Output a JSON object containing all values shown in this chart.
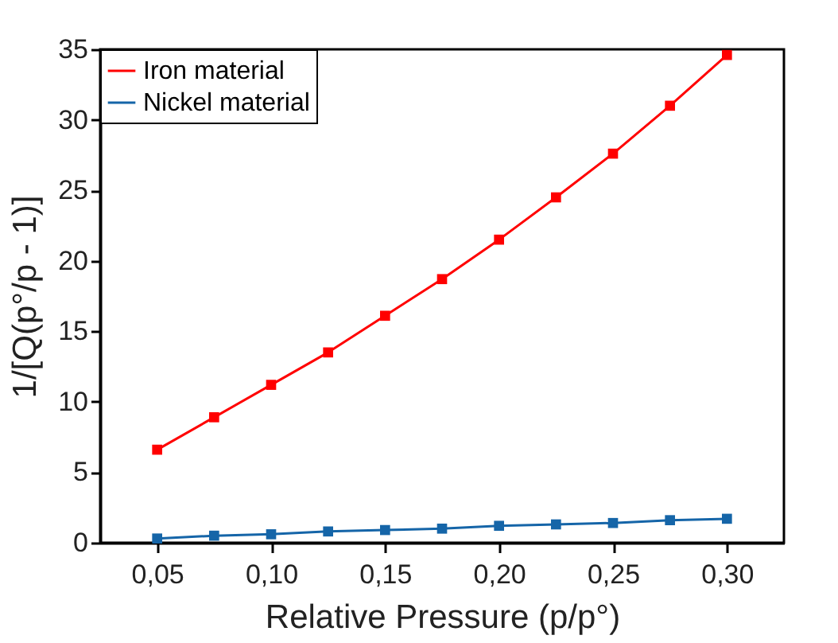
{
  "chart_data": {
    "type": "line",
    "xlabel": "Relative Pressure (p/p°)",
    "ylabel": "1/[Q(p°/p - 1)]",
    "x": [
      0.05,
      0.075,
      0.1,
      0.125,
      0.15,
      0.175,
      0.2,
      0.225,
      0.25,
      0.275,
      0.3
    ],
    "series": [
      {
        "name": "Iron material",
        "color": "#ff0000",
        "values": [
          6.6,
          8.9,
          11.2,
          13.5,
          16.1,
          18.7,
          21.5,
          24.5,
          27.6,
          31.0,
          34.6
        ]
      },
      {
        "name": "Nickel material",
        "color": "#1565a8",
        "values": [
          0.3,
          0.5,
          0.6,
          0.8,
          0.9,
          1.0,
          1.2,
          1.3,
          1.4,
          1.6,
          1.7
        ]
      }
    ],
    "xlim": [
      0.025,
      0.325
    ],
    "xticks": [
      {
        "value": 0.05,
        "label": "0,05"
      },
      {
        "value": 0.1,
        "label": "0,10"
      },
      {
        "value": 0.15,
        "label": "0,15"
      },
      {
        "value": 0.2,
        "label": "0,20"
      },
      {
        "value": 0.25,
        "label": "0,25"
      },
      {
        "value": 0.3,
        "label": "0,30"
      }
    ],
    "ylim": [
      0,
      35
    ],
    "yticks": [
      0,
      5,
      10,
      15,
      20,
      25,
      30,
      35
    ],
    "grid": false,
    "legend": "top left",
    "marker": "square",
    "line_style": "solid"
  }
}
